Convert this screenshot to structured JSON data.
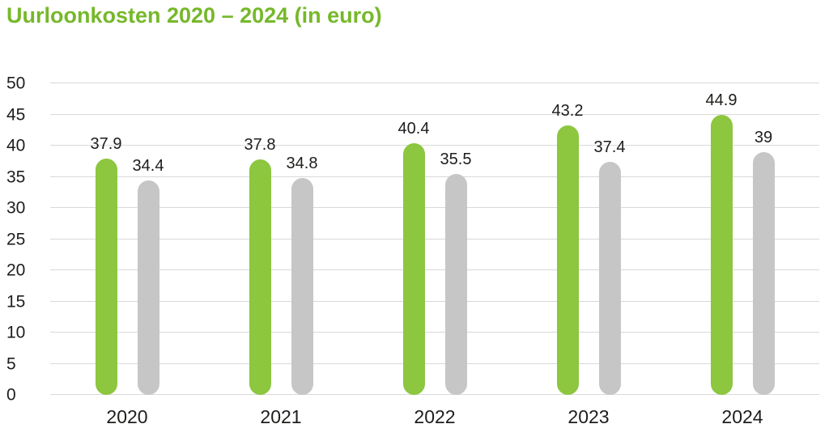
{
  "title": {
    "text": "Uurloonkosten 2020 – 2024 (in euro)",
    "color": "#76b82a"
  },
  "colors": {
    "grid": "#d9d9d9",
    "text": "#1d1d1b",
    "background": "#ffffff"
  },
  "chart_data": {
    "type": "bar",
    "title": "Uurloonkosten 2020 – 2024 (in euro)",
    "categories": [
      "2020",
      "2021",
      "2022",
      "2023",
      "2024"
    ],
    "series": [
      {
        "name": "uurloonkosten-groen",
        "color": "#8dc63f",
        "values": [
          37.9,
          37.8,
          40.4,
          43.2,
          44.9
        ],
        "labels": [
          "37.9",
          "37.8",
          "40.4",
          "43.2",
          "44.9"
        ]
      },
      {
        "name": "uurloonkosten-grijs",
        "color": "#c6c6c6",
        "values": [
          34.4,
          34.8,
          35.5,
          37.4,
          39
        ],
        "labels": [
          "34.4",
          "34.8",
          "35.5",
          "37.4",
          "39"
        ]
      }
    ],
    "ylim": [
      0,
      50
    ],
    "yticks": [
      0,
      5,
      10,
      15,
      20,
      25,
      30,
      35,
      40,
      45,
      50
    ],
    "grid": true,
    "legend": "none",
    "value_labels_shown": true
  }
}
